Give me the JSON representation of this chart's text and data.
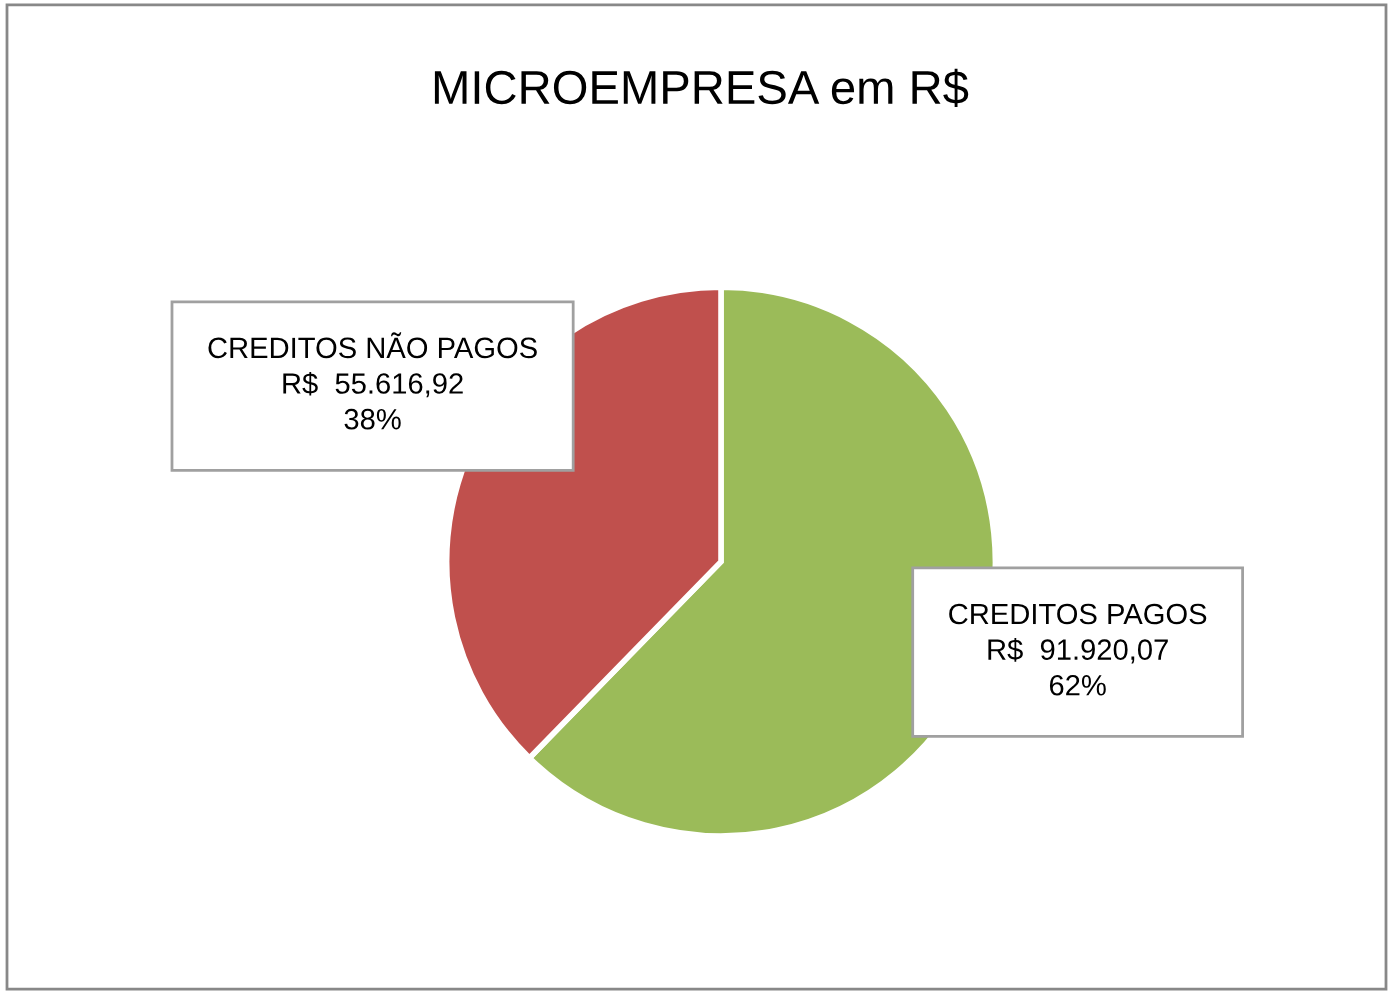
{
  "chart_data": {
    "type": "pie",
    "title": "MICROEMPRESA em R$",
    "categories": [
      "CREDITOS PAGOS",
      "CREDITOS NÃO PAGOS"
    ],
    "values": [
      91920.07,
      55616.92
    ],
    "colors": [
      "#9bbb59",
      "#c0504d"
    ],
    "value_labels": [
      "R$  91.920,07\n62%",
      "R$  55.616,92\n38%"
    ],
    "legend": false
  }
}
